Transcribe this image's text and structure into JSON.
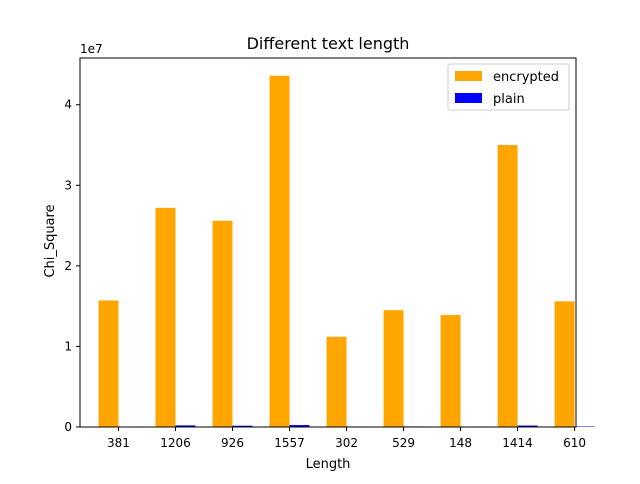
{
  "chart_data": {
    "type": "bar",
    "title": "Different text length",
    "xlabel": "Length",
    "ylabel": "Chi_Square",
    "y_offset_label": "1e7",
    "categories": [
      "381",
      "1206",
      "926",
      "1557",
      "302",
      "529",
      "148",
      "1414",
      "610"
    ],
    "series": [
      {
        "name": "encrypted",
        "color": "#ffa500",
        "values": [
          15700000,
          27200000,
          25600000,
          43600000,
          11200000,
          14500000,
          13900000,
          35000000,
          15600000
        ]
      },
      {
        "name": "plain",
        "color": "#0000ff",
        "values": [
          60000,
          200000,
          160000,
          240000,
          40000,
          70000,
          30000,
          180000,
          60000
        ]
      }
    ],
    "ylim": [
      0,
      45800000
    ],
    "yticks": [
      {
        "value": 0,
        "label": "0"
      },
      {
        "value": 10000000,
        "label": "1"
      },
      {
        "value": 20000000,
        "label": "2"
      },
      {
        "value": 30000000,
        "label": "3"
      },
      {
        "value": 40000000,
        "label": "4"
      }
    ],
    "legend_position": "top-right",
    "grid": false
  }
}
